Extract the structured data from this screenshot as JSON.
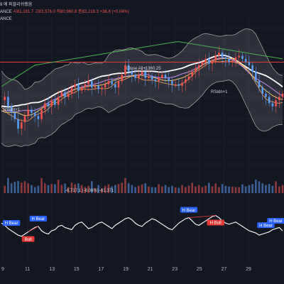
{
  "header": {
    "title_fragment": "9 에 퍼블리쉬했음",
    "exchange_fragment": "ANCE",
    "open_fragment": "시81,181.7",
    "high_fragment": "고83,376.0",
    "low_fragment": "저80,960.8",
    "close_fragment": "종83,218.3",
    "change_fragment": "+36.8 (+0.04%)",
    "overlay_fragment": "ANCE"
  },
  "annotations": {
    "close_all": "Close All+1360.25",
    "rsi_label": "RSIdn+1",
    "short_label": "Shadn+1",
    "volume_readout_a": "-6,717.1 (-8.06%)",
    "volume_readout_b": "-61,371"
  },
  "colors": {
    "background": "#131722",
    "up": "#ef5350",
    "down": "#5b9cf6",
    "band": "#9e9e9e",
    "ma_green": "#4caf50",
    "ma_white": "#ffffff",
    "ma_purple": "#c38ef0",
    "ma_yellow": "#e9c46a",
    "ma_orange": "#f4a259",
    "level_red": "#e53935",
    "bear_badge": "#2962ff",
    "bull_badge": "#e53935"
  },
  "chart_data": {
    "type": "line",
    "x_tick_labels": [
      "9",
      "11",
      "13",
      "15",
      "17",
      "19",
      "21",
      "23",
      "25",
      "27",
      "29"
    ],
    "series": [
      {
        "values": [
          48,
          50,
          44,
          40,
          36,
          30,
          34,
          38,
          42,
          40,
          38,
          36,
          42,
          46,
          44,
          48,
          45,
          50,
          53,
          50,
          52,
          56,
          58,
          54,
          56,
          58,
          60,
          56,
          57,
          55,
          56,
          58,
          60,
          58,
          56,
          60,
          64,
          70,
          66,
          64,
          62,
          64,
          66,
          62,
          63,
          61,
          60,
          62,
          64,
          62,
          60,
          58,
          58,
          57,
          59,
          61,
          63,
          66,
          68,
          70,
          72,
          74,
          71,
          73,
          76,
          78,
          75,
          74,
          72,
          73,
          75,
          76,
          74,
          72,
          70,
          66,
          60,
          56,
          52,
          50,
          46,
          44,
          48,
          50,
          52
        ]
      },
      {
        "values": [
          62,
          58,
          52,
          48,
          44,
          40,
          38,
          42,
          46,
          50,
          54,
          56,
          48,
          44,
          42,
          48,
          50,
          56,
          58,
          54,
          52,
          50,
          58,
          62,
          64,
          58,
          52,
          54,
          58,
          62,
          64,
          60,
          56,
          52,
          58,
          62,
          66,
          70,
          72,
          68,
          62,
          58,
          56,
          62,
          66,
          70,
          68,
          64,
          60,
          56,
          52,
          50,
          56,
          62,
          66,
          70,
          72,
          66,
          60,
          58,
          62,
          66,
          70,
          74,
          76,
          72,
          66,
          62,
          60,
          62,
          64,
          60,
          56,
          52,
          48,
          46,
          44,
          40,
          42,
          44,
          46,
          50,
          52,
          54,
          48
        ]
      }
    ]
  },
  "signals": [
    {
      "label": "H Bear",
      "color": "#2962ff"
    },
    {
      "label": "H Bear",
      "color": "#2962ff"
    },
    {
      "label": "Bull",
      "color": "#e53935"
    },
    {
      "label": "H Bear",
      "color": "#2962ff"
    },
    {
      "label": "H Bull",
      "color": "#e53935"
    },
    {
      "label": "H Bear",
      "color": "#2962ff"
    },
    {
      "label": "H Bear",
      "color": "#2962ff"
    }
  ]
}
